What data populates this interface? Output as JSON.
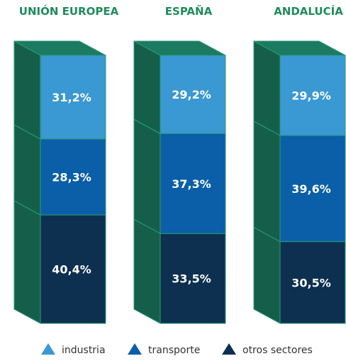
{
  "chart_data": {
    "type": "bar",
    "stacked": true,
    "style": "3d-stacked-blocks",
    "categories": [
      "UNIÓN EUROPEA",
      "ESPAÑA",
      "ANDALUCÍA"
    ],
    "series": [
      {
        "name": "industria",
        "values": [
          31.2,
          29.2,
          29.9
        ],
        "labels": [
          "31,2%",
          "29,2%",
          "29,9%"
        ],
        "color": "#3a98d2"
      },
      {
        "name": "transporte",
        "values": [
          28.3,
          37.3,
          39.6
        ],
        "labels": [
          "28,3%",
          "37,3%",
          "39,6%"
        ],
        "color": "#0a5fa8"
      },
      {
        "name": "otros sectores",
        "values": [
          40.4,
          33.5,
          30.5
        ],
        "labels": [
          "40,4%",
          "33,5%",
          "30,5%"
        ],
        "color": "#0d3050"
      }
    ],
    "unit": "%",
    "legend_position": "bottom",
    "colors": {
      "title": "#1e8c5a",
      "side_face": "#155f4a",
      "top_face": "#1b7a60",
      "edge": "#2a9a78"
    }
  }
}
